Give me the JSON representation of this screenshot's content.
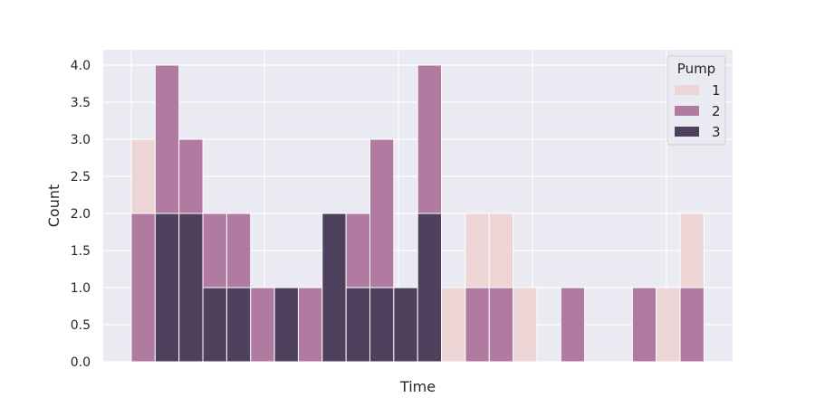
{
  "chart_data": {
    "type": "bar",
    "stacked": true,
    "xlabel": "Time",
    "ylabel": "Count",
    "ylim": [
      0,
      4.2
    ],
    "y_ticks": [
      "0.0",
      "0.5",
      "1.0",
      "1.5",
      "2.0",
      "2.5",
      "3.0",
      "3.5",
      "4.0"
    ],
    "grid": true,
    "legend": {
      "title": "Pump",
      "position": "top-right",
      "entries": [
        "1",
        "2",
        "3"
      ]
    },
    "colors": {
      "1": "#eed5d5",
      "2": "#b07aa1",
      "3": "#4f405e",
      "background": "#eaeaf2",
      "grid": "#ffffff"
    },
    "bins": 24,
    "series": [
      {
        "name": "1",
        "values": [
          1,
          0,
          0,
          0,
          0,
          0,
          0,
          0,
          0,
          0,
          0,
          0,
          0,
          1,
          1,
          1,
          1,
          0,
          0,
          0,
          0,
          0,
          1,
          1
        ]
      },
      {
        "name": "2",
        "values": [
          2,
          2,
          1,
          1,
          1,
          1,
          0,
          1,
          0,
          1,
          2,
          0,
          2,
          0,
          1,
          1,
          0,
          0,
          1,
          0,
          0,
          1,
          0,
          1
        ]
      },
      {
        "name": "3",
        "values": [
          0,
          2,
          2,
          1,
          1,
          0,
          1,
          0,
          2,
          1,
          1,
          1,
          2,
          0,
          0,
          0,
          0,
          0,
          0,
          0,
          0,
          0,
          0,
          0
        ]
      }
    ]
  }
}
